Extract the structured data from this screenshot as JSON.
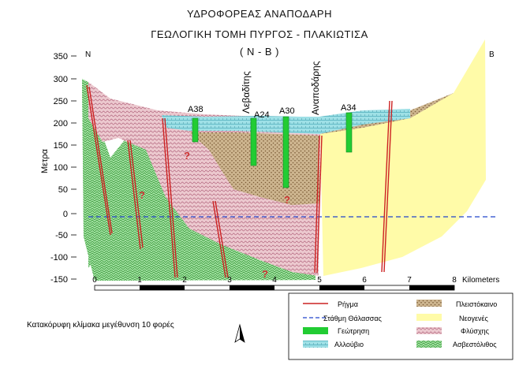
{
  "title": {
    "line1": "ΥΔΡΟΦΟΡΕΑΣ ΑΝΑΠΟΔΑΡΗ",
    "line2": "ΓΕΩΛΟΓΙΚΗ ΤΟΜΗ ΠΥΡΓΟΣ - ΠΛΑΚΙΩΤΙΣΑ",
    "line3": "( N - B )"
  },
  "axis": {
    "y_label": "Μετρα",
    "y_ticks": [
      "350",
      "300",
      "250",
      "200",
      "150",
      "100",
      "50",
      "0",
      "-50",
      "-100",
      "-150"
    ],
    "x_ticks": [
      "0",
      "1",
      "2",
      "3",
      "4",
      "5",
      "6",
      "7",
      "8"
    ],
    "x_unit": "Kilometers"
  },
  "ends": {
    "left": "N",
    "right": "B"
  },
  "boreholes": [
    "A38",
    "A24",
    "A30",
    "A34"
  ],
  "places": [
    "Λεβαδίτης",
    "Αναποδάρης"
  ],
  "question_mark": "?",
  "legend": {
    "fault": "Ρήγμα",
    "sea_level": "Στάθμη Θάλασσας",
    "borehole": "Γεώτρηση",
    "alluvium": "Αλλούβιο",
    "pleistocene": "Πλειστόκαινο",
    "neogene": "Νεογενές",
    "phyllite": "Φλύσχης",
    "limestone": "Ασβεστόλιθος"
  },
  "scale_note": "Κατακόρυφη κλίμακα μεγέθυνση 10 φορές",
  "colors": {
    "fault": "#cc2222",
    "sea_level": "#2244cc",
    "borehole": "#22cc33",
    "alluvium": "#7ad0d8",
    "pleistocene": "#b8956a",
    "neogene": "#fffaa0",
    "phyllite": "#e3b8c0",
    "limestone": "#8fd98f"
  }
}
